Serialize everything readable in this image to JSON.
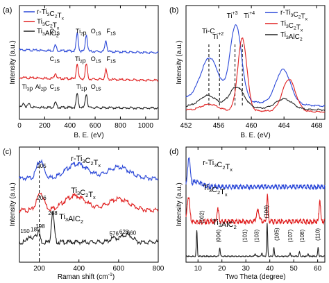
{
  "chart_data": [
    {
      "type": "line",
      "panel_label": "(a)",
      "xlabel": "B. E. (eV)",
      "ylabel": "Intensity (a.u.)",
      "xlim": [
        0,
        1100
      ],
      "xticks": [
        0,
        200,
        400,
        600,
        800,
        1000
      ],
      "legend": {
        "placement": "top-left",
        "entries": [
          "r-Ti3C2Tx",
          "Ti3C2Tx",
          "Ti3AlC2"
        ]
      },
      "series": [
        {
          "name": "r-Ti3C2Tx",
          "color": "#2b48d8",
          "offset": 2.0,
          "base": 0.25,
          "peaks": [
            [
              285,
              0.2
            ],
            [
              458,
              0.65
            ],
            [
              530,
              0.6
            ],
            [
              685,
              0.4
            ]
          ],
          "annotations": [
            {
              "text": "C1s",
              "x": 240
            },
            {
              "text": "Ti2p",
              "x": 445
            },
            {
              "text": "O1s",
              "x": 565
            },
            {
              "text": "F1s",
              "x": 690
            }
          ]
        },
        {
          "name": "Ti3C2Tx",
          "color": "#e02020",
          "offset": 1.0,
          "base": 0.25,
          "peaks": [
            [
              285,
              0.2
            ],
            [
              458,
              0.55
            ],
            [
              530,
              0.55
            ],
            [
              685,
              0.35
            ]
          ],
          "annotations": [
            {
              "text": "C1s",
              "x": 240
            },
            {
              "text": "Ti2p",
              "x": 440
            },
            {
              "text": "O1s",
              "x": 565
            },
            {
              "text": "F1s",
              "x": 690
            }
          ]
        },
        {
          "name": "Ti3AlC2",
          "color": "#222222",
          "offset": 0.0,
          "base": 0.15,
          "peaks": [
            [
              35,
              0.15
            ],
            [
              74,
              0.12
            ],
            [
              285,
              0.18
            ],
            [
              458,
              0.5
            ],
            [
              530,
              0.5
            ]
          ],
          "annotations": [
            {
              "text": "Ti3p",
              "x": 20
            },
            {
              "text": "Al2p",
              "x": 125
            },
            {
              "text": "C1s",
              "x": 240
            },
            {
              "text": "Ti2p",
              "x": 450
            },
            {
              "text": "O1s",
              "x": 565
            }
          ]
        }
      ]
    },
    {
      "type": "line",
      "panel_label": "(b)",
      "xlabel": "B. E. (eV)",
      "ylabel": "Intensity (a.u.)",
      "xlim": [
        452,
        469
      ],
      "xticks": [
        452,
        456,
        460,
        464,
        468
      ],
      "legend": {
        "placement": "top-right",
        "entries": [
          "r-Ti3C2Tx",
          "Ti3C2Tx",
          "Ti3AlC2"
        ]
      },
      "annotations": [
        {
          "text": "Ti-C",
          "x": 454.8
        },
        {
          "text": "Ti",
          "sup": "+2",
          "x": 456.1
        },
        {
          "text": "Ti",
          "sup": "+3",
          "x": 458.0
        },
        {
          "text": "Ti",
          "sup": "+4",
          "x": 458.9
        }
      ],
      "reference_lines": [
        454.8,
        456.1,
        458.0,
        458.9
      ],
      "series": [
        {
          "name": "r-Ti3C2Tx",
          "color": "#2b48d8",
          "baseline": 0.2,
          "peaks": [
            [
              454.9,
              0.55,
              1.1
            ],
            [
              458.1,
              1.0,
              0.7
            ],
            [
              463.9,
              0.45,
              0.9
            ]
          ]
        },
        {
          "name": "Ti3C2Tx",
          "color": "#e02020",
          "baseline": 0.05,
          "peaks": [
            [
              454.9,
              0.08,
              1.0
            ],
            [
              458.9,
              0.95,
              0.55
            ],
            [
              464.6,
              0.42,
              0.8
            ]
          ]
        },
        {
          "name": "Ti3AlC2",
          "color": "#222222",
          "baseline": 0.1,
          "peaks": [
            [
              454.7,
              0.15,
              1.0
            ],
            [
              458.2,
              0.27,
              0.9
            ],
            [
              464.0,
              0.13,
              1.0
            ]
          ]
        }
      ]
    },
    {
      "type": "line",
      "panel_label": "(c)",
      "xlabel": "Raman shift (cm",
      "xlabel_sup": "-1",
      "xlabel_tail": ")",
      "ylabel": "Intensity (a.u.)",
      "xlim": [
        100,
        800
      ],
      "xticks": [
        200,
        400,
        600,
        800
      ],
      "reference_lines": [
        200
      ],
      "series": [
        {
          "name": "r-Ti3C2Tx",
          "color": "#2b48d8",
          "offset": 2.0,
          "peaks": [
            [
              205,
              0.55,
              18
            ],
            [
              390,
              0.45,
              55
            ],
            [
              600,
              0.35,
              55
            ]
          ],
          "annotations": [
            {
              "text": "205",
              "x": 212
            }
          ]
        },
        {
          "name": "Ti3C2Tx",
          "color": "#e02020",
          "offset": 1.0,
          "peaks": [
            [
              206,
              0.55,
              18
            ],
            [
              380,
              0.45,
              55
            ],
            [
              600,
              0.35,
              55
            ]
          ],
          "annotations": [
            {
              "text": "206",
              "x": 212
            }
          ]
        },
        {
          "name": "Ti3AlC2",
          "color": "#222222",
          "offset": 0.0,
          "peaks": [
            [
              150,
              0.2,
              8
            ],
            [
              180,
              0.25,
              8
            ],
            [
              198,
              0.35,
              6
            ],
            [
              268,
              0.95,
              7
            ],
            [
              576,
              0.12,
              20
            ],
            [
              628,
              0.18,
              20
            ],
            [
              660,
              0.14,
              18
            ]
          ],
          "annotations": [
            {
              "text": "150",
              "x": 128
            },
            {
              "text": "180",
              "x": 180
            },
            {
              "text": "198",
              "x": 205
            },
            {
              "text": "268",
              "x": 268
            },
            {
              "text": "576",
              "x": 577
            },
            {
              "text": "628",
              "x": 627
            },
            {
              "text": "660",
              "x": 665
            }
          ]
        }
      ]
    },
    {
      "type": "line",
      "panel_label": "(d)",
      "xlabel": "Two Theta (degree)",
      "ylabel": "Intensity (a.u.)",
      "xlim": [
        5,
        63
      ],
      "xticks": [
        10,
        20,
        30,
        40,
        50,
        60
      ],
      "series": [
        {
          "name": "r-Ti3C2Tx",
          "color": "#2b48d8",
          "offset": 2.0,
          "peaks": [
            [
              6.2,
              0.8,
              0.5
            ],
            [
              9.5,
              0.15,
              2.5
            ]
          ]
        },
        {
          "name": "Ti3C2Tx",
          "color": "#e02020",
          "offset": 1.0,
          "peaks": [
            [
              6.0,
              0.75,
              0.5
            ],
            [
              18.3,
              0.35,
              0.4
            ],
            [
              35.0,
              0.3,
              0.6
            ],
            [
              39.0,
              0.75,
              0.3
            ],
            [
              60.9,
              0.65,
              0.3
            ]
          ]
        },
        {
          "name": "Ti3AlC2",
          "color": "#222222",
          "offset": 0.0,
          "peaks": [
            [
              9.5,
              0.75,
              0.2
            ],
            [
              19.1,
              0.25,
              0.2
            ],
            [
              33.9,
              0.08,
              0.2
            ],
            [
              36.7,
              0.1,
              0.2
            ],
            [
              38.9,
              0.95,
              0.2
            ],
            [
              41.7,
              0.25,
              0.2
            ],
            [
              48.5,
              0.1,
              0.2
            ],
            [
              52.4,
              0.12,
              0.2
            ],
            [
              56.0,
              0.08,
              0.2
            ],
            [
              60.2,
              0.25,
              0.2
            ]
          ],
          "annotations": [
            {
              "text": "(002)",
              "x": 11.5,
              "level": 0.9
            },
            {
              "text": "(004)",
              "x": 18.5,
              "level": 0.35
            },
            {
              "text": "(101)",
              "x": 29.5,
              "level": 0.35
            },
            {
              "text": "(103)",
              "x": 34.5,
              "level": 0.35
            },
            {
              "text": "(104)",
              "x": 38.5,
              "level": 1.05
            },
            {
              "text": "(105)",
              "x": 42.8,
              "level": 0.4
            },
            {
              "text": "(107)",
              "x": 48.5,
              "level": 0.35
            },
            {
              "text": "(108)",
              "x": 53.5,
              "level": 0.35
            },
            {
              "text": "(110)",
              "x": 60.0,
              "level": 0.4
            }
          ],
          "series_label_position": "lower"
        }
      ]
    }
  ]
}
